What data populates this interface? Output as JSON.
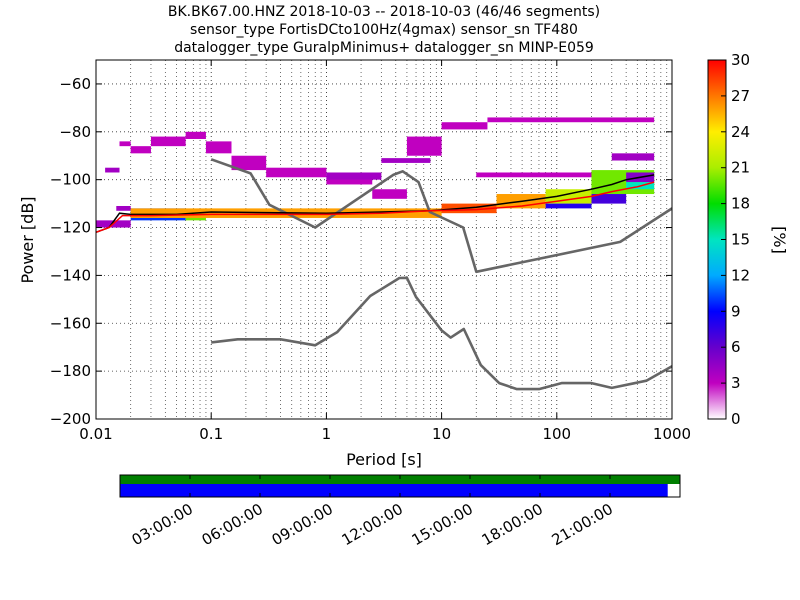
{
  "chart_data": {
    "type": "heatmap",
    "title_lines": [
      "BK.BK67.00.HNZ   2018-10-03 -- 2018-10-03  (46/46 segments)",
      "sensor_type FortisDCto100Hz(4gmax) sensor_sn TF480",
      "datalogger_type GuralpMinimus+ datalogger_sn MINP-E059"
    ],
    "xlabel": "Period [s]",
    "ylabel": "Power [dB]",
    "x_scale": "log",
    "xlim": [
      0.01,
      1000
    ],
    "ylim": [
      -200,
      -50
    ],
    "x_ticks": [
      {
        "value": 0.01,
        "label": "0.01"
      },
      {
        "value": 0.1,
        "label": "0.1"
      },
      {
        "value": 1,
        "label": "1"
      },
      {
        "value": 10,
        "label": "10"
      },
      {
        "value": 100,
        "label": "100"
      },
      {
        "value": 1000,
        "label": "1000"
      }
    ],
    "y_ticks": [
      {
        "value": -60,
        "label": "−60"
      },
      {
        "value": -80,
        "label": "−80"
      },
      {
        "value": -100,
        "label": "−100"
      },
      {
        "value": -120,
        "label": "−120"
      },
      {
        "value": -140,
        "label": "−140"
      },
      {
        "value": -160,
        "label": "−160"
      },
      {
        "value": -180,
        "label": "−180"
      },
      {
        "value": -200,
        "label": "−200"
      }
    ],
    "grid": true,
    "colorbar": {
      "label": "[%]",
      "range": [
        0,
        30
      ],
      "ticks": [
        {
          "value": 0,
          "label": "0"
        },
        {
          "value": 3,
          "label": "3"
        },
        {
          "value": 6,
          "label": "6"
        },
        {
          "value": 9,
          "label": "9"
        },
        {
          "value": 12,
          "label": "12"
        },
        {
          "value": 15,
          "label": "15"
        },
        {
          "value": 18,
          "label": "18"
        },
        {
          "value": 21,
          "label": "21"
        },
        {
          "value": 24,
          "label": "24"
        },
        {
          "value": 27,
          "label": "27"
        },
        {
          "value": 30,
          "label": "30"
        }
      ]
    },
    "noise_models": {
      "color": "#666666",
      "nhnm": [
        [
          0.1,
          -91.5
        ],
        [
          0.22,
          -97.4
        ],
        [
          0.32,
          -110.5
        ],
        [
          0.8,
          -120
        ],
        [
          3.8,
          -98
        ],
        [
          4.6,
          -96.5
        ],
        [
          6.3,
          -101
        ],
        [
          7.9,
          -113.5
        ],
        [
          15.4,
          -120
        ],
        [
          20,
          -138.5
        ],
        [
          354.8,
          -126
        ],
        [
          1000,
          -112
        ]
      ],
      "nlnm": [
        [
          0.1,
          -168
        ],
        [
          0.17,
          -166.7
        ],
        [
          0.4,
          -166.7
        ],
        [
          0.8,
          -169.2
        ],
        [
          1.24,
          -163.7
        ],
        [
          2.4,
          -148.6
        ],
        [
          4.3,
          -141.1
        ],
        [
          5,
          -141
        ],
        [
          6,
          -149
        ],
        [
          10,
          -163
        ],
        [
          12,
          -166
        ],
        [
          15.6,
          -162.4
        ],
        [
          21.9,
          -177.5
        ],
        [
          31.6,
          -185
        ],
        [
          45,
          -187.5
        ],
        [
          70,
          -187.5
        ],
        [
          110,
          -185
        ],
        [
          200,
          -185
        ],
        [
          300,
          -187
        ],
        [
          600,
          -184
        ],
        [
          1000,
          -178
        ]
      ]
    },
    "series": [
      {
        "name": "",
        "color": "#000000",
        "points": [
          [
            0.01,
            -122
          ],
          [
            0.013,
            -120
          ],
          [
            0.016,
            -114
          ],
          [
            0.02,
            -114.5
          ],
          [
            0.05,
            -114.5
          ],
          [
            0.1,
            -113.5
          ],
          [
            1,
            -114
          ],
          [
            3,
            -113.5
          ],
          [
            8,
            -113
          ],
          [
            20,
            -111.5
          ],
          [
            50,
            -109
          ],
          [
            100,
            -107
          ],
          [
            200,
            -104
          ],
          [
            300,
            -102
          ],
          [
            400,
            -100
          ],
          [
            700,
            -98
          ]
        ]
      },
      {
        "name": "",
        "color": "#ff0000",
        "points": [
          [
            0.01,
            -122
          ],
          [
            0.013,
            -120
          ],
          [
            0.017,
            -115
          ],
          [
            0.03,
            -115
          ],
          [
            0.1,
            -114.5
          ],
          [
            1,
            -114.5
          ],
          [
            3,
            -114
          ],
          [
            8,
            -113
          ],
          [
            20,
            -112.5
          ],
          [
            50,
            -111
          ],
          [
            100,
            -109
          ],
          [
            200,
            -107
          ],
          [
            300,
            -105
          ],
          [
            500,
            -103
          ],
          [
            700,
            -101
          ]
        ]
      }
    ],
    "psd_bins": [
      {
        "x": [
          0.012,
          0.016
        ],
        "y": [
          -97,
          -95
        ],
        "value": 4
      },
      {
        "x": [
          0.016,
          0.02
        ],
        "y": [
          -86,
          -84
        ],
        "value": 3
      },
      {
        "x": [
          0.02,
          0.03
        ],
        "y": [
          -89,
          -86
        ],
        "value": 3
      },
      {
        "x": [
          0.03,
          0.06
        ],
        "y": [
          -86,
          -82
        ],
        "value": 3
      },
      {
        "x": [
          0.06,
          0.09
        ],
        "y": [
          -83,
          -80
        ],
        "value": 3
      },
      {
        "x": [
          0.09,
          0.15
        ],
        "y": [
          -89,
          -84
        ],
        "value": 3
      },
      {
        "x": [
          0.15,
          0.3
        ],
        "y": [
          -96,
          -90
        ],
        "value": 3
      },
      {
        "x": [
          0.3,
          1
        ],
        "y": [
          -99,
          -95
        ],
        "value": 3
      },
      {
        "x": [
          1,
          2.5
        ],
        "y": [
          -102,
          -99
        ],
        "value": 3
      },
      {
        "x": [
          2.5,
          5
        ],
        "y": [
          -108,
          -104
        ],
        "value": 3
      },
      {
        "x": [
          5,
          10
        ],
        "y": [
          -90,
          -82
        ],
        "value": 3
      },
      {
        "x": [
          10,
          25
        ],
        "y": [
          -79,
          -76
        ],
        "value": 3
      },
      {
        "x": [
          25,
          700
        ],
        "y": [
          -76,
          -74
        ],
        "value": 3
      },
      {
        "x": [
          1,
          3
        ],
        "y": [
          -100,
          -97
        ],
        "value": 4
      },
      {
        "x": [
          3,
          8
        ],
        "y": [
          -93,
          -91
        ],
        "value": 4
      },
      {
        "x": [
          20,
          300
        ],
        "y": [
          -99,
          -97
        ],
        "value": 3
      },
      {
        "x": [
          300,
          700
        ],
        "y": [
          -92,
          -89
        ],
        "value": 4
      },
      {
        "x": [
          0.01,
          0.02
        ],
        "y": [
          -120,
          -117
        ],
        "value": 4
      },
      {
        "x": [
          0.015,
          0.02
        ],
        "y": [
          -113,
          -111
        ],
        "value": 4
      },
      {
        "x": [
          0.02,
          0.06
        ],
        "y": [
          -117,
          -112
        ],
        "value": 10
      },
      {
        "x": [
          0.06,
          0.09
        ],
        "y": [
          -117,
          -113
        ],
        "value": 20
      },
      {
        "x": [
          0.02,
          10
        ],
        "y": [
          -116,
          -112
        ],
        "value": 26
      },
      {
        "x": [
          10,
          30
        ],
        "y": [
          -114,
          -110
        ],
        "value": 28
      },
      {
        "x": [
          30,
          80
        ],
        "y": [
          -112,
          -106
        ],
        "value": 26
      },
      {
        "x": [
          80,
          200
        ],
        "y": [
          -110,
          -104
        ],
        "value": 22
      },
      {
        "x": [
          200,
          700
        ],
        "y": [
          -106,
          -96
        ],
        "value": 20
      },
      {
        "x": [
          80,
          200
        ],
        "y": [
          -112,
          -110
        ],
        "value": 8
      },
      {
        "x": [
          200,
          400
        ],
        "y": [
          -110,
          -106
        ],
        "value": 7
      },
      {
        "x": [
          400,
          700
        ],
        "y": [
          -104,
          -101
        ],
        "value": 15
      },
      {
        "x": [
          400,
          700
        ],
        "y": [
          -101,
          -97
        ],
        "value": 5
      }
    ],
    "coverage_bar": {
      "time_ticks": [
        "03:00:00",
        "06:00:00",
        "09:00:00",
        "12:00:00",
        "15:00:00",
        "18:00:00",
        "21:00:00"
      ],
      "data_color": "#007f00",
      "psd_color": "#0000ff",
      "psd_coverage_fraction": 0.978
    }
  }
}
